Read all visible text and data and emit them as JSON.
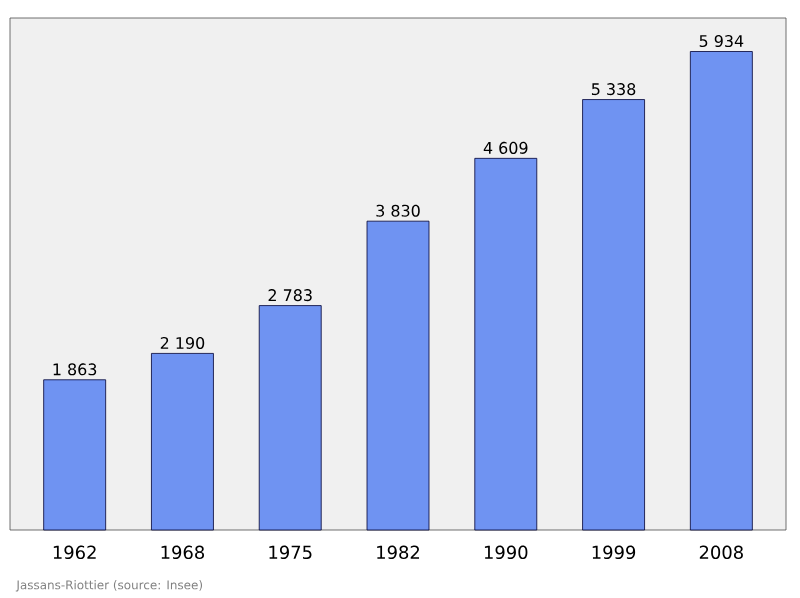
{
  "chart_data": {
    "type": "bar",
    "categories": [
      "1962",
      "1968",
      "1975",
      "1982",
      "1990",
      "1999",
      "2008"
    ],
    "values": [
      1863,
      2190,
      2783,
      3830,
      4609,
      5338,
      5934
    ],
    "value_labels": [
      "1 863",
      "2 190",
      "2 783",
      "3 830",
      "4 609",
      "5 338",
      "5 934"
    ],
    "color": "#6f93f2",
    "annotations": [
      "Jassans-Riottier    (source: Insee)"
    ]
  }
}
